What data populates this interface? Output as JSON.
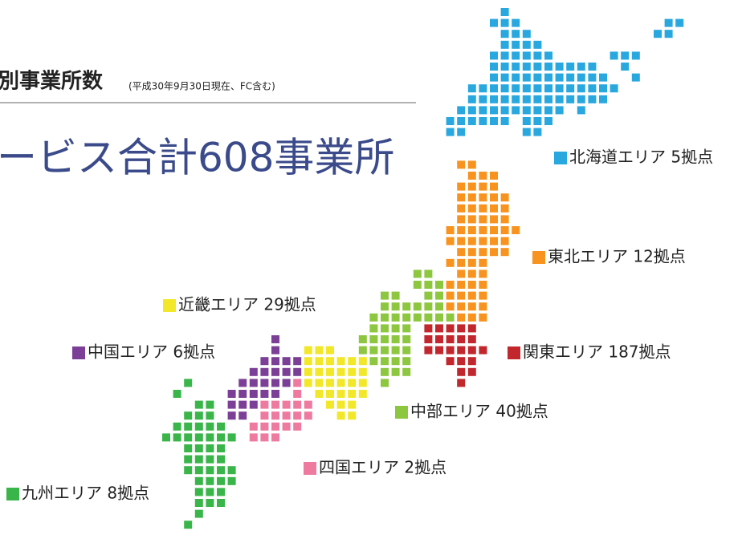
{
  "header": {
    "title": "別事業所数",
    "note": "(平成30年9月30日現在、FC含む)",
    "total": "ービス合計608事業所"
  },
  "regions": [
    {
      "label": "北海道エリア 5拠点",
      "color": "#29a8e0"
    },
    {
      "label": "東北エリア 12拠点",
      "color": "#f7931e"
    },
    {
      "label": "関東エリア 187拠点",
      "color": "#c1272d"
    },
    {
      "label": "中部エリア 40拠点",
      "color": "#8dc63f"
    },
    {
      "label": "近畿エリア 29拠点",
      "color": "#f2e829"
    },
    {
      "label": "中国エリア 6拠点",
      "color": "#7b3f98"
    },
    {
      "label": "四国エリア 2拠点",
      "color": "#ee7aa0"
    },
    {
      "label": "九州エリア 8拠点",
      "color": "#39b54a"
    }
  ]
}
